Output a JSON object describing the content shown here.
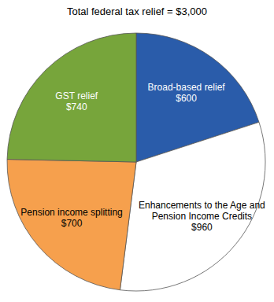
{
  "chart_data": {
    "type": "pie",
    "title": "Total federal tax relief = $3,000",
    "categories": [
      "Broad-based relief",
      "Enhancements to the Age and Pension Income Credits",
      "Pension income splitting",
      "GST relief"
    ],
    "values": [
      600,
      960,
      700,
      740
    ],
    "value_labels": [
      "$600",
      "$960",
      "$700",
      "$740"
    ],
    "colors": [
      "#2a5caa",
      "#ffffff",
      "#f6a04d",
      "#77a53b"
    ],
    "data_labels": true
  }
}
